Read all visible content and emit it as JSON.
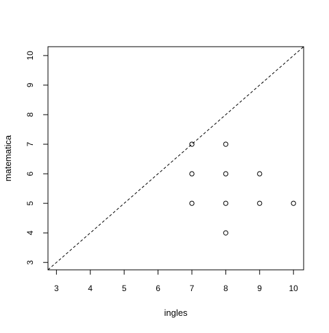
{
  "chart_data": {
    "type": "scatter",
    "title": "",
    "xlabel": "ingles",
    "ylabel": "matematica",
    "xlim": [
      2.75,
      10.3
    ],
    "ylim": [
      2.75,
      10.3
    ],
    "x_ticks": [
      3,
      4,
      5,
      6,
      7,
      8,
      9,
      10
    ],
    "y_ticks": [
      3,
      4,
      5,
      6,
      7,
      8,
      9,
      10
    ],
    "grid": false,
    "reference_line": {
      "type": "identity",
      "style": "dashed",
      "intercept": 0,
      "slope": 1
    },
    "points": [
      {
        "x": 7,
        "y": 7
      },
      {
        "x": 7,
        "y": 6
      },
      {
        "x": 7,
        "y": 5
      },
      {
        "x": 8,
        "y": 7
      },
      {
        "x": 8,
        "y": 6
      },
      {
        "x": 8,
        "y": 5
      },
      {
        "x": 8,
        "y": 4
      },
      {
        "x": 9,
        "y": 6
      },
      {
        "x": 9,
        "y": 5
      },
      {
        "x": 10,
        "y": 5
      }
    ],
    "marker": "open-circle",
    "color": "#000000"
  }
}
